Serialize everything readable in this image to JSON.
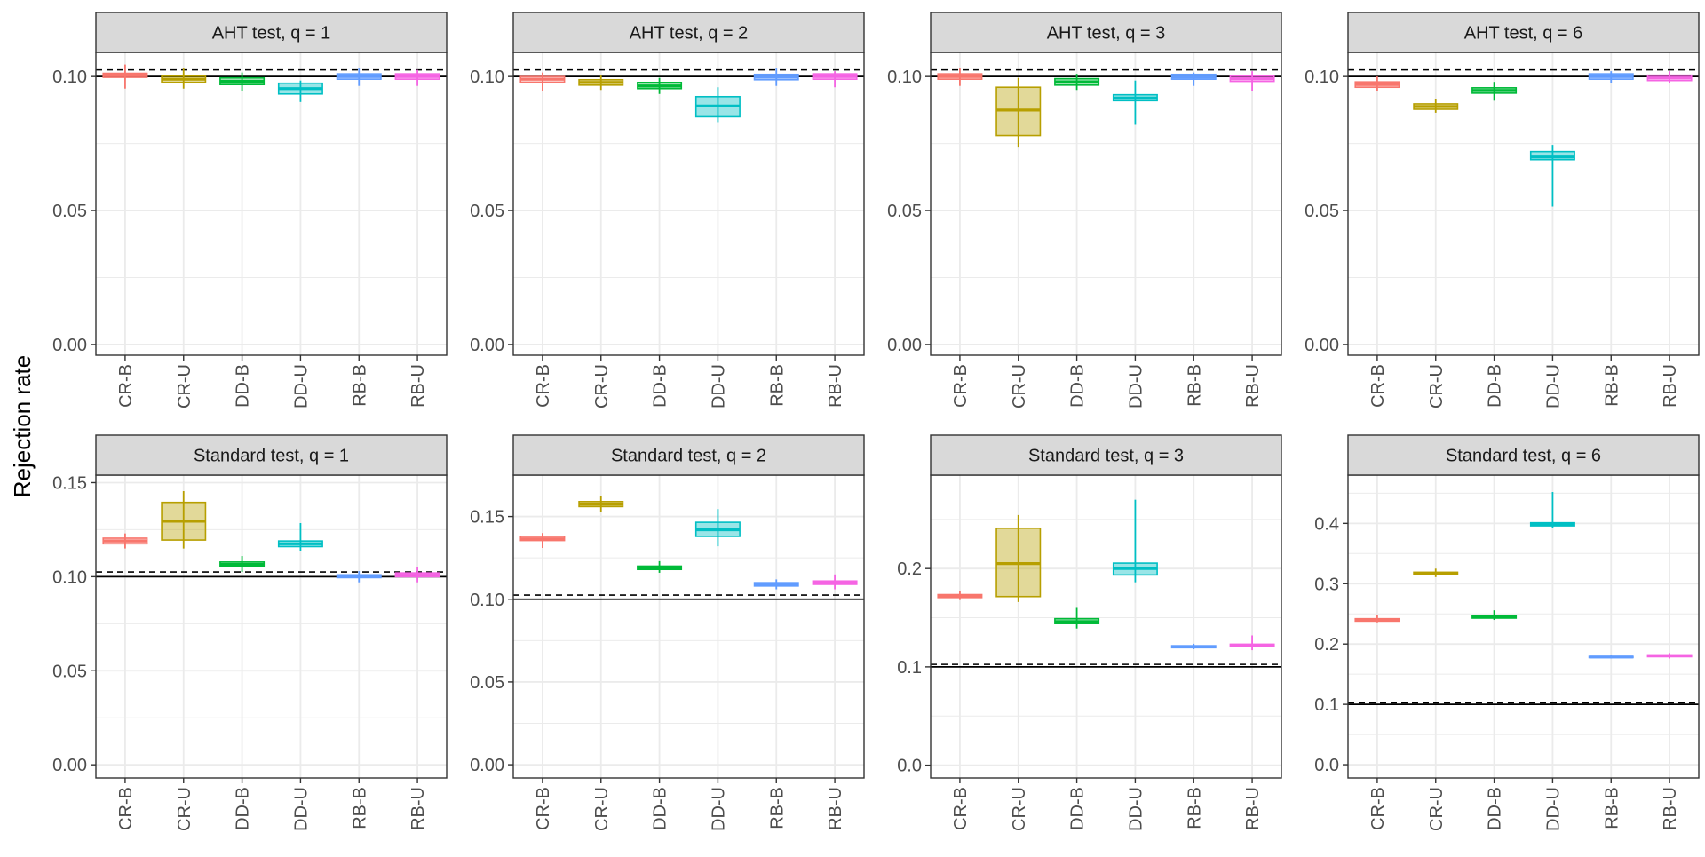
{
  "ylabel": "Rejection rate",
  "colors": {
    "CR-B": "#F8766D",
    "CR-U": "#B79F00",
    "DD-B": "#00BA38",
    "DD-U": "#00BFC4",
    "RB-B": "#619CFF",
    "RB-U": "#F564E3",
    "strip_fill": "#D9D9D9",
    "grid": "#EBEBEB",
    "reference_line": "#000000"
  },
  "chart_data": [
    {
      "type": "boxplot",
      "strip": "AHT test, q = 1",
      "categories": [
        "CR-B",
        "CR-U",
        "DD-B",
        "DD-U",
        "RB-B",
        "RB-U"
      ],
      "ylim": [
        -0.004,
        0.109
      ],
      "yticks": [
        0.0,
        0.05,
        0.1
      ],
      "ytick_labels": [
        "0.00",
        "0.05",
        "0.10"
      ],
      "hline_solid": 0.1,
      "hline_dashed": 0.1025,
      "boxes": [
        {
          "min": 0.0955,
          "q1": 0.0997,
          "median": 0.1005,
          "q3": 0.1012,
          "max": 0.1045
        },
        {
          "min": 0.0955,
          "q1": 0.0978,
          "median": 0.099,
          "q3": 0.1002,
          "max": 0.103
        },
        {
          "min": 0.0945,
          "q1": 0.097,
          "median": 0.0982,
          "q3": 0.0995,
          "max": 0.1015
        },
        {
          "min": 0.0905,
          "q1": 0.0935,
          "median": 0.0955,
          "q3": 0.0975,
          "max": 0.0985
        },
        {
          "min": 0.0965,
          "q1": 0.099,
          "median": 0.1,
          "q3": 0.101,
          "max": 0.103
        },
        {
          "min": 0.0965,
          "q1": 0.099,
          "median": 0.1,
          "q3": 0.101,
          "max": 0.1025
        }
      ]
    },
    {
      "type": "boxplot",
      "strip": "AHT test, q = 2",
      "categories": [
        "CR-B",
        "CR-U",
        "DD-B",
        "DD-U",
        "RB-B",
        "RB-U"
      ],
      "ylim": [
        -0.004,
        0.109
      ],
      "yticks": [
        0.0,
        0.05,
        0.1
      ],
      "ytick_labels": [
        "0.00",
        "0.05",
        "0.10"
      ],
      "hline_solid": 0.1,
      "hline_dashed": 0.1025,
      "boxes": [
        {
          "min": 0.0945,
          "q1": 0.0978,
          "median": 0.099,
          "q3": 0.1,
          "max": 0.1015
        },
        {
          "min": 0.095,
          "q1": 0.0968,
          "median": 0.0978,
          "q3": 0.0988,
          "max": 0.1005
        },
        {
          "min": 0.0935,
          "q1": 0.0955,
          "median": 0.0965,
          "q3": 0.0978,
          "max": 0.0995
        },
        {
          "min": 0.083,
          "q1": 0.085,
          "median": 0.089,
          "q3": 0.0925,
          "max": 0.096
        },
        {
          "min": 0.0965,
          "q1": 0.0988,
          "median": 0.0998,
          "q3": 0.1008,
          "max": 0.103
        },
        {
          "min": 0.096,
          "q1": 0.099,
          "median": 0.1,
          "q3": 0.101,
          "max": 0.102
        }
      ]
    },
    {
      "type": "boxplot",
      "strip": "AHT test, q = 3",
      "categories": [
        "CR-B",
        "CR-U",
        "DD-B",
        "DD-U",
        "RB-B",
        "RB-U"
      ],
      "ylim": [
        -0.004,
        0.109
      ],
      "yticks": [
        0.0,
        0.05,
        0.1
      ],
      "ytick_labels": [
        "0.00",
        "0.05",
        "0.10"
      ],
      "hline_solid": 0.1,
      "hline_dashed": 0.1025,
      "boxes": [
        {
          "min": 0.0965,
          "q1": 0.099,
          "median": 0.1,
          "q3": 0.101,
          "max": 0.103
        },
        {
          "min": 0.0735,
          "q1": 0.078,
          "median": 0.0875,
          "q3": 0.096,
          "max": 0.0995
        },
        {
          "min": 0.095,
          "q1": 0.0968,
          "median": 0.098,
          "q3": 0.0992,
          "max": 0.101
        },
        {
          "min": 0.082,
          "q1": 0.091,
          "median": 0.092,
          "q3": 0.0932,
          "max": 0.0985
        },
        {
          "min": 0.0965,
          "q1": 0.099,
          "median": 0.0998,
          "q3": 0.1008,
          "max": 0.1015
        },
        {
          "min": 0.0945,
          "q1": 0.0982,
          "median": 0.0992,
          "q3": 0.1002,
          "max": 0.102
        }
      ]
    },
    {
      "type": "boxplot",
      "strip": "AHT test, q = 6",
      "categories": [
        "CR-B",
        "CR-U",
        "DD-B",
        "DD-U",
        "RB-B",
        "RB-U"
      ],
      "ylim": [
        -0.004,
        0.109
      ],
      "yticks": [
        0.0,
        0.05,
        0.1
      ],
      "ytick_labels": [
        "0.00",
        "0.05",
        "0.10"
      ],
      "hline_solid": 0.1,
      "hline_dashed": 0.1025,
      "boxes": [
        {
          "min": 0.0945,
          "q1": 0.096,
          "median": 0.097,
          "q3": 0.098,
          "max": 0.1
        },
        {
          "min": 0.0865,
          "q1": 0.0878,
          "median": 0.0888,
          "q3": 0.0898,
          "max": 0.0915
        },
        {
          "min": 0.091,
          "q1": 0.0938,
          "median": 0.0948,
          "q3": 0.0958,
          "max": 0.098
        },
        {
          "min": 0.0515,
          "q1": 0.069,
          "median": 0.07,
          "q3": 0.072,
          "max": 0.0745
        },
        {
          "min": 0.0975,
          "q1": 0.099,
          "median": 0.1,
          "q3": 0.101,
          "max": 0.102
        },
        {
          "min": 0.0975,
          "q1": 0.0985,
          "median": 0.0995,
          "q3": 0.1005,
          "max": 0.102
        }
      ]
    },
    {
      "type": "boxplot",
      "strip": "Standard test, q = 1",
      "categories": [
        "CR-B",
        "CR-U",
        "DD-B",
        "DD-U",
        "RB-B",
        "RB-U"
      ],
      "ylim": [
        -0.007,
        0.154
      ],
      "yticks": [
        0.0,
        0.05,
        0.1,
        0.15
      ],
      "ytick_labels": [
        "0.00",
        "0.05",
        "0.10",
        "0.15"
      ],
      "hline_solid": 0.1,
      "hline_dashed": 0.1025,
      "boxes": [
        {
          "min": 0.115,
          "q1": 0.1175,
          "median": 0.119,
          "q3": 0.1205,
          "max": 0.123
        },
        {
          "min": 0.115,
          "q1": 0.1195,
          "median": 0.1295,
          "q3": 0.1395,
          "max": 0.1455
        },
        {
          "min": 0.1025,
          "q1": 0.1055,
          "median": 0.1065,
          "q3": 0.1078,
          "max": 0.111
        },
        {
          "min": 0.1135,
          "q1": 0.116,
          "median": 0.1175,
          "q3": 0.119,
          "max": 0.1285
        },
        {
          "min": 0.097,
          "q1": 0.0995,
          "median": 0.1002,
          "q3": 0.101,
          "max": 0.103
        },
        {
          "min": 0.097,
          "q1": 0.1,
          "median": 0.101,
          "q3": 0.102,
          "max": 0.105
        }
      ]
    },
    {
      "type": "boxplot",
      "strip": "Standard test, q = 2",
      "categories": [
        "CR-B",
        "CR-U",
        "DD-B",
        "DD-U",
        "RB-B",
        "RB-U"
      ],
      "ylim": [
        -0.008,
        0.175
      ],
      "yticks": [
        0.0,
        0.05,
        0.1,
        0.15
      ],
      "ytick_labels": [
        "0.00",
        "0.05",
        "0.10",
        "0.15"
      ],
      "hline_solid": 0.1,
      "hline_dashed": 0.1025,
      "boxes": [
        {
          "min": 0.131,
          "q1": 0.1355,
          "median": 0.1365,
          "q3": 0.138,
          "max": 0.14
        },
        {
          "min": 0.153,
          "q1": 0.156,
          "median": 0.1575,
          "q3": 0.159,
          "max": 0.1625
        },
        {
          "min": 0.116,
          "q1": 0.118,
          "median": 0.119,
          "q3": 0.12,
          "max": 0.123
        },
        {
          "min": 0.132,
          "q1": 0.138,
          "median": 0.142,
          "q3": 0.1465,
          "max": 0.1545
        },
        {
          "min": 0.106,
          "q1": 0.108,
          "median": 0.109,
          "q3": 0.11,
          "max": 0.112
        },
        {
          "min": 0.106,
          "q1": 0.109,
          "median": 0.11,
          "q3": 0.111,
          "max": 0.115
        }
      ]
    },
    {
      "type": "boxplot",
      "strip": "Standard test, q = 3",
      "categories": [
        "CR-B",
        "CR-U",
        "DD-B",
        "DD-U",
        "RB-B",
        "RB-U"
      ],
      "ylim": [
        -0.013,
        0.295
      ],
      "yticks": [
        0.0,
        0.1,
        0.2
      ],
      "ytick_labels": [
        "0.0",
        "0.1",
        "0.2"
      ],
      "hline_solid": 0.1,
      "hline_dashed": 0.1025,
      "boxes": [
        {
          "min": 0.168,
          "q1": 0.1705,
          "median": 0.172,
          "q3": 0.1735,
          "max": 0.177
        },
        {
          "min": 0.166,
          "q1": 0.1715,
          "median": 0.205,
          "q3": 0.241,
          "max": 0.2545
        },
        {
          "min": 0.139,
          "q1": 0.144,
          "median": 0.146,
          "q3": 0.149,
          "max": 0.16
        },
        {
          "min": 0.186,
          "q1": 0.1935,
          "median": 0.2,
          "q3": 0.2055,
          "max": 0.27
        },
        {
          "min": 0.118,
          "q1": 0.1195,
          "median": 0.1205,
          "q3": 0.1215,
          "max": 0.1235
        },
        {
          "min": 0.117,
          "q1": 0.121,
          "median": 0.122,
          "q3": 0.123,
          "max": 0.132
        }
      ]
    },
    {
      "type": "boxplot",
      "strip": "Standard test, q = 6",
      "categories": [
        "CR-B",
        "CR-U",
        "DD-B",
        "DD-U",
        "RB-B",
        "RB-U"
      ],
      "ylim": [
        -0.022,
        0.48
      ],
      "yticks": [
        0.0,
        0.1,
        0.2,
        0.3,
        0.4
      ],
      "ytick_labels": [
        "0.0",
        "0.1",
        "0.2",
        "0.3",
        "0.4"
      ],
      "hline_solid": 0.1,
      "hline_dashed": 0.1025,
      "boxes": [
        {
          "min": 0.236,
          "q1": 0.238,
          "median": 0.24,
          "q3": 0.242,
          "max": 0.248
        },
        {
          "min": 0.311,
          "q1": 0.315,
          "median": 0.317,
          "q3": 0.319,
          "max": 0.325
        },
        {
          "min": 0.24,
          "q1": 0.243,
          "median": 0.245,
          "q3": 0.247,
          "max": 0.256
        },
        {
          "min": 0.392,
          "q1": 0.396,
          "median": 0.399,
          "q3": 0.401,
          "max": 0.452
        },
        {
          "min": 0.176,
          "q1": 0.1775,
          "median": 0.1785,
          "q3": 0.1795,
          "max": 0.181
        },
        {
          "min": 0.176,
          "q1": 0.179,
          "median": 0.1805,
          "q3": 0.182,
          "max": 0.185
        }
      ]
    }
  ]
}
